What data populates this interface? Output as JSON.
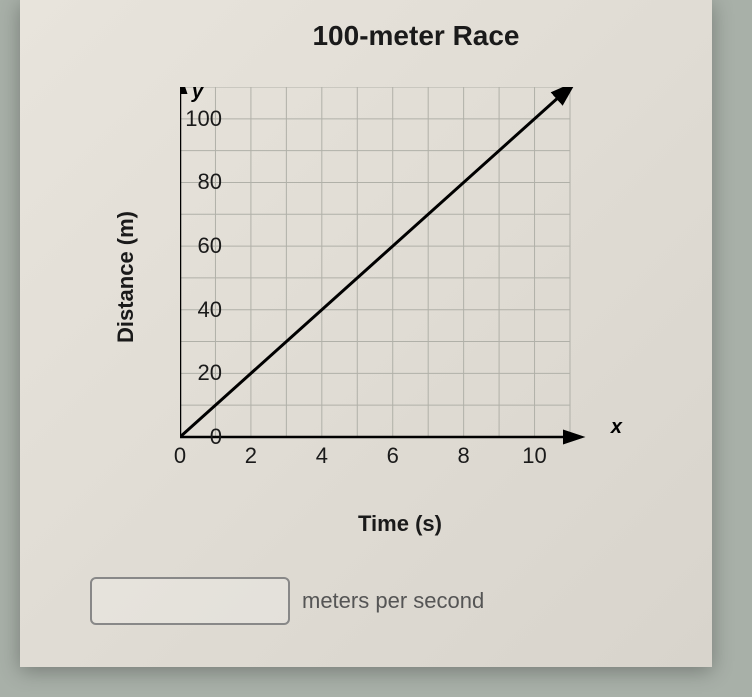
{
  "chart": {
    "type": "line",
    "title": "100-meter Race",
    "xlabel": "Time (s)",
    "ylabel": "Distance (m)",
    "title_fontsize": 28,
    "label_fontsize": 22,
    "tick_fontsize": 22,
    "xlim": [
      0,
      11
    ],
    "ylim": [
      0,
      110
    ],
    "xtick_step": 1,
    "ytick_step": 10,
    "xtick_labels": [
      0,
      2,
      4,
      6,
      8,
      10
    ],
    "ytick_labels": [
      0,
      20,
      40,
      60,
      80,
      100
    ],
    "grid_color": "#b0b0a8",
    "axis_color": "#000000",
    "line_color": "#000000",
    "background_color": "#e8e4dc",
    "line_width": 3,
    "axis_width": 2.5,
    "grid_width": 1,
    "y_axis_symbol": "y",
    "x_axis_symbol": "x",
    "line_data": {
      "x": [
        0,
        11
      ],
      "y": [
        0,
        110
      ]
    },
    "arrow_end": true
  },
  "answer": {
    "value": "",
    "placeholder": "",
    "unit_label": "meters per second"
  }
}
